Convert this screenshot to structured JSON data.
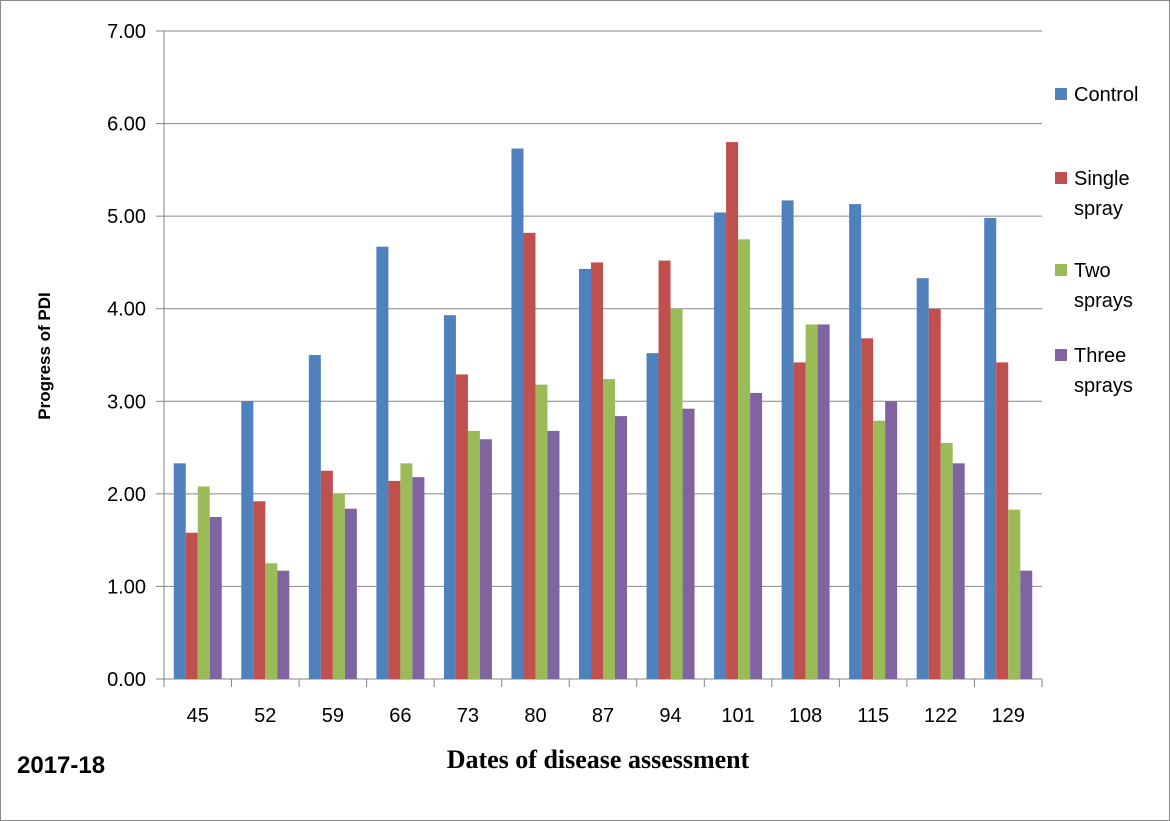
{
  "chart_data": {
    "type": "bar",
    "categories": [
      "45",
      "52",
      "59",
      "66",
      "73",
      "80",
      "87",
      "94",
      "101",
      "108",
      "115",
      "122",
      "129"
    ],
    "series": [
      {
        "name": "Control",
        "color": "#4f81bd",
        "values": [
          2.33,
          3.0,
          3.5,
          4.67,
          3.93,
          5.73,
          4.43,
          3.52,
          5.04,
          5.17,
          5.13,
          4.33,
          4.98
        ]
      },
      {
        "name": "Single spray",
        "color": "#c0504d",
        "values": [
          1.58,
          1.92,
          2.25,
          2.14,
          3.29,
          4.82,
          4.5,
          4.52,
          5.8,
          3.42,
          3.68,
          4.0,
          3.42
        ]
      },
      {
        "name": "Two sprays",
        "color": "#9bbb59",
        "values": [
          2.08,
          1.25,
          2.0,
          2.33,
          2.68,
          3.18,
          3.24,
          4.0,
          4.75,
          3.83,
          2.79,
          2.55,
          1.83
        ]
      },
      {
        "name": "Three sprays",
        "color": "#8064a2",
        "values": [
          1.75,
          1.17,
          1.84,
          2.18,
          2.59,
          2.68,
          2.84,
          2.92,
          3.09,
          3.83,
          3.0,
          2.33,
          1.17
        ]
      }
    ],
    "ylim": [
      0,
      7
    ],
    "yticks": [
      "0.00",
      "1.00",
      "2.00",
      "3.00",
      "4.00",
      "5.00",
      "6.00",
      "7.00"
    ],
    "ylabel": "Progress of PDI",
    "xlabel": "Dates of disease assessment",
    "annotation": "2017-18",
    "legend_entries": [
      [
        "Control"
      ],
      [
        "Single",
        "spray"
      ],
      [
        "Two",
        "sprays"
      ],
      [
        "Three",
        "sprays"
      ]
    ],
    "legend_position": "right",
    "grid": true
  }
}
